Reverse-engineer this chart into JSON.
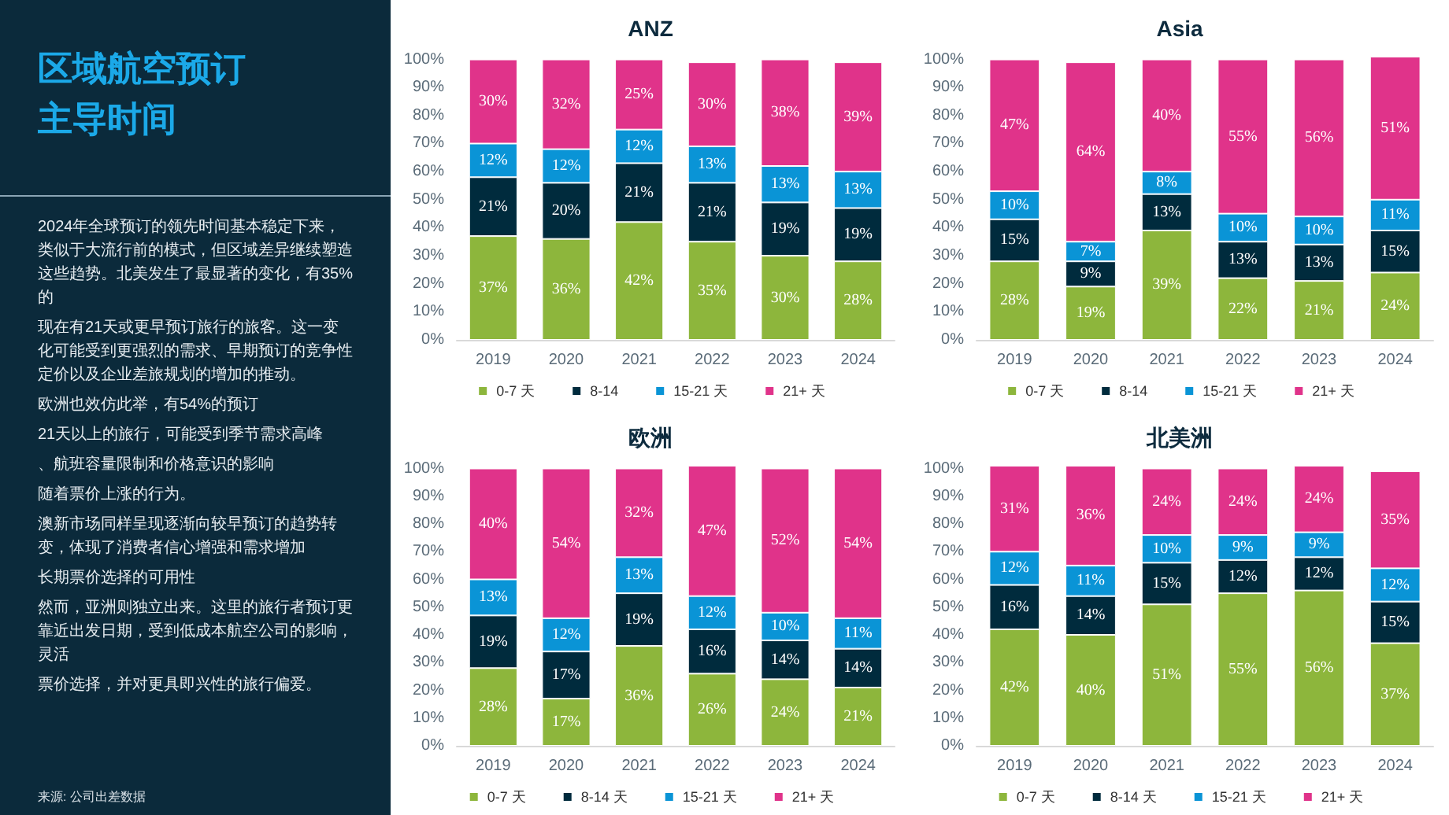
{
  "chart_data": [
    {
      "type": "other",
      "title": "区域航空预订主导时间",
      "annotations": [
        "2024年全球预订的领先时间基本稳定下来，类似于大流行前的模式，但区域差异继续塑造这些趋势。北美发生了最显著的变化，有35%的",
        "现在有21天或更早预订旅行的旅客。这一变化可能受到更强烈的需求、早期预订的竞争性定价以及企业差旅规划的增加的推动。",
        "欧洲也效仿此举，有54%的预订",
        "21天以上的旅行，可能受到季节需求高峰",
        "、航班容量限制和价格意识的影响",
        "随着票价上涨的行为。",
        "澳新市场同样呈现逐渐向较早预订的趋势转变，体现了消费者信心增强和需求增加",
        "长期票价选择的可用性",
        "然而，亚洲则独立出来。这里的旅行者预订更靠近出发日期，受到低成本航空公司的影响，灵活",
        "票价选择，并对更具即兴性的旅行偏爱。",
        "来源: 公司出差数据"
      ]
    },
    {
      "type": "bar",
      "title": "ANZ",
      "stacked": true,
      "legend": "bottom",
      "grid": false,
      "categories": [
        "2019",
        "2020",
        "2021",
        "2022",
        "2023",
        "2024"
      ],
      "ylim": [
        0,
        101
      ],
      "yticks": [
        {
          "value": 0,
          "label": "0%"
        },
        {
          "value": 10,
          "label": "10%"
        },
        {
          "value": 20,
          "label": "20%"
        },
        {
          "value": 30,
          "label": "30%"
        },
        {
          "value": 40,
          "label": "40%"
        },
        {
          "value": 50,
          "label": "50%"
        },
        {
          "value": 60,
          "label": "60%"
        },
        {
          "value": 70,
          "label": "70%"
        },
        {
          "value": 80,
          "label": "80%"
        },
        {
          "value": 90,
          "label": "90%"
        },
        {
          "value": 100,
          "label": "100%"
        }
      ],
      "series": [
        {
          "name": "0-7 天",
          "color": "#8db63c",
          "values": [
            37,
            36,
            42,
            35,
            30,
            28
          ],
          "value_labels": [
            "37%",
            "36%",
            "42%",
            "35%",
            "30%",
            "28%"
          ]
        },
        {
          "name": "8-14",
          "color": "#002b3d",
          "values": [
            21,
            20,
            21,
            21,
            19,
            19
          ],
          "value_labels": [
            "21%",
            "20%",
            "21%",
            "21%",
            "19%",
            "19%"
          ]
        },
        {
          "name": "15-21 天",
          "color": "#0a94d6",
          "values": [
            12,
            12,
            12,
            13,
            13,
            13
          ],
          "value_labels": [
            "12%",
            "12%",
            "12%",
            "13%",
            "13%",
            "13%"
          ]
        },
        {
          "name": "21+ 天",
          "color": "#e0338a",
          "values": [
            30,
            32,
            25,
            30,
            38,
            39
          ],
          "value_labels": [
            "30%",
            "32%",
            "25%",
            "30%",
            "38%",
            "39%"
          ]
        }
      ]
    },
    {
      "type": "bar",
      "title": "Asia",
      "stacked": true,
      "legend": "bottom",
      "grid": false,
      "categories": [
        "2019",
        "2020",
        "2021",
        "2022",
        "2023",
        "2024"
      ],
      "ylim": [
        0,
        101
      ],
      "yticks": [
        {
          "value": 0,
          "label": "0%"
        },
        {
          "value": 10,
          "label": "10%"
        },
        {
          "value": 20,
          "label": "20%"
        },
        {
          "value": 30,
          "label": "30%"
        },
        {
          "value": 40,
          "label": "40%"
        },
        {
          "value": 50,
          "label": "50%"
        },
        {
          "value": 60,
          "label": "60%"
        },
        {
          "value": 70,
          "label": "70%"
        },
        {
          "value": 80,
          "label": "80%"
        },
        {
          "value": 90,
          "label": "90%"
        },
        {
          "value": 100,
          "label": "100%"
        }
      ],
      "series": [
        {
          "name": "0-7 天",
          "color": "#8db63c",
          "values": [
            28,
            19,
            39,
            22,
            21,
            24
          ],
          "value_labels": [
            "28%",
            "19%",
            "39%",
            "22%",
            "21%",
            "24%"
          ]
        },
        {
          "name": "8-14",
          "color": "#002b3d",
          "values": [
            15,
            9,
            13,
            13,
            13,
            15
          ],
          "value_labels": [
            "15%",
            "9%",
            "13%",
            "13%",
            "13%",
            "15%"
          ]
        },
        {
          "name": "15-21 天",
          "color": "#0a94d6",
          "values": [
            10,
            7,
            8,
            10,
            10,
            11
          ],
          "value_labels": [
            "10%",
            "7%",
            "8%",
            "10%",
            "10%",
            "11%"
          ]
        },
        {
          "name": "21+ 天",
          "color": "#e0338a",
          "values": [
            47,
            64,
            40,
            55,
            56,
            51
          ],
          "value_labels": [
            "47%",
            "64%",
            "40%",
            "55%",
            "56%",
            "51%"
          ]
        }
      ]
    },
    {
      "type": "bar",
      "title": "欧洲",
      "stacked": true,
      "legend": "bottom",
      "grid": false,
      "categories": [
        "2019",
        "2020",
        "2021",
        "2022",
        "2023",
        "2024"
      ],
      "ylim": [
        0,
        101
      ],
      "yticks": [
        {
          "value": 0,
          "label": "0%"
        },
        {
          "value": 10,
          "label": "10%"
        },
        {
          "value": 20,
          "label": "20%"
        },
        {
          "value": 30,
          "label": "30%"
        },
        {
          "value": 40,
          "label": "40%"
        },
        {
          "value": 50,
          "label": "50%"
        },
        {
          "value": 60,
          "label": "60%"
        },
        {
          "value": 70,
          "label": "70%"
        },
        {
          "value": 80,
          "label": "80%"
        },
        {
          "value": 90,
          "label": "90%"
        },
        {
          "value": 100,
          "label": "100%"
        }
      ],
      "series": [
        {
          "name": "0-7 天",
          "color": "#8db63c",
          "values": [
            28,
            17,
            36,
            26,
            24,
            21
          ],
          "value_labels": [
            "28%",
            "17%",
            "36%",
            "26%",
            "24%",
            "21%"
          ]
        },
        {
          "name": "8-14 天",
          "color": "#002b3d",
          "values": [
            19,
            17,
            19,
            16,
            14,
            14
          ],
          "value_labels": [
            "19%",
            "17%",
            "19%",
            "16%",
            "14%",
            "14%"
          ]
        },
        {
          "name": "15-21 天",
          "color": "#0a94d6",
          "values": [
            13,
            12,
            13,
            12,
            10,
            11
          ],
          "value_labels": [
            "13%",
            "12%",
            "13%",
            "12%",
            "10%",
            "11%"
          ]
        },
        {
          "name": "21+ 天",
          "color": "#e0338a",
          "values": [
            40,
            54,
            32,
            47,
            52,
            54
          ],
          "value_labels": [
            "40%",
            "54%",
            "32%",
            "47%",
            "52%",
            "54%"
          ]
        }
      ]
    },
    {
      "type": "bar",
      "title": "北美洲",
      "stacked": true,
      "legend": "bottom",
      "grid": false,
      "categories": [
        "2019",
        "2020",
        "2021",
        "2022",
        "2023",
        "2024"
      ],
      "ylim": [
        0,
        101
      ],
      "yticks": [
        {
          "value": 0,
          "label": "0%"
        },
        {
          "value": 10,
          "label": "10%"
        },
        {
          "value": 20,
          "label": "20%"
        },
        {
          "value": 30,
          "label": "30%"
        },
        {
          "value": 40,
          "label": "40%"
        },
        {
          "value": 50,
          "label": "50%"
        },
        {
          "value": 60,
          "label": "60%"
        },
        {
          "value": 70,
          "label": "70%"
        },
        {
          "value": 80,
          "label": "80%"
        },
        {
          "value": 90,
          "label": "90%"
        },
        {
          "value": 100,
          "label": "100%"
        }
      ],
      "series": [
        {
          "name": "0-7 天",
          "color": "#8db63c",
          "values": [
            42,
            40,
            51,
            55,
            56,
            37
          ],
          "value_labels": [
            "42%",
            "40%",
            "51%",
            "55%",
            "56%",
            "37%"
          ]
        },
        {
          "name": "8-14 天",
          "color": "#002b3d",
          "values": [
            16,
            14,
            15,
            12,
            12,
            15
          ],
          "value_labels": [
            "16%",
            "14%",
            "15%",
            "12%",
            "12%",
            "15%"
          ]
        },
        {
          "name": "15-21 天",
          "color": "#0a94d6",
          "values": [
            12,
            11,
            10,
            9,
            9,
            12
          ],
          "value_labels": [
            "12%",
            "11%",
            "10%",
            "9%",
            "9%",
            "12%"
          ]
        },
        {
          "name": "21+ 天",
          "color": "#e0338a",
          "values": [
            31,
            36,
            24,
            24,
            24,
            35
          ],
          "value_labels": [
            "31%",
            "36%",
            "24%",
            "24%",
            "24%",
            "35%"
          ]
        }
      ]
    }
  ]
}
